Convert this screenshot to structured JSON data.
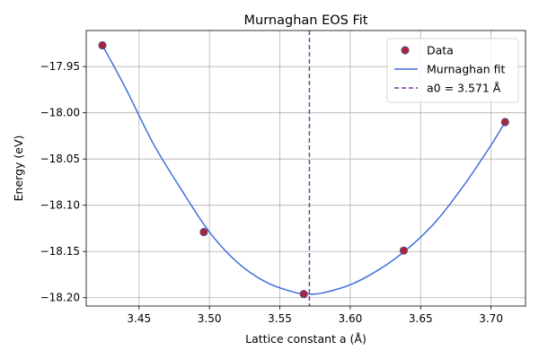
{
  "chart_data": {
    "type": "scatter",
    "title": "Murnaghan EOS Fit",
    "xlabel": "Lattice constant a (Å)",
    "ylabel": "Energy (eV)",
    "xlim": [
      3.4125,
      3.7245
    ],
    "ylim": [
      -18.209,
      -17.911
    ],
    "xticks": [
      3.45,
      3.5,
      3.55,
      3.6,
      3.65,
      3.7
    ],
    "xtick_labels": [
      "3.45",
      "3.50",
      "3.55",
      "3.60",
      "3.65",
      "3.70"
    ],
    "yticks": [
      -17.95,
      -18.0,
      -18.05,
      -18.1,
      -18.15,
      -18.2
    ],
    "ytick_labels": [
      "−17.95",
      "−18.00",
      "−18.05",
      "−18.10",
      "−18.15",
      "−18.20"
    ],
    "grid": true,
    "legend_position": "top-right",
    "series": [
      {
        "name": "Data",
        "kind": "scatter",
        "color": "#a8253a",
        "x": [
          3.424,
          3.496,
          3.567,
          3.638,
          3.71
        ],
        "y": [
          -17.927,
          -18.129,
          -18.196,
          -18.149,
          -18.01
        ]
      },
      {
        "name": "Murnaghan fit",
        "kind": "line",
        "color": "#3d6fdd",
        "x": [
          3.424,
          3.44,
          3.46,
          3.48,
          3.5,
          3.52,
          3.54,
          3.56,
          3.571,
          3.58,
          3.6,
          3.62,
          3.64,
          3.66,
          3.68,
          3.7,
          3.71
        ],
        "y": [
          -17.927,
          -17.972,
          -18.033,
          -18.083,
          -18.129,
          -18.162,
          -18.183,
          -18.194,
          -18.196,
          -18.195,
          -18.186,
          -18.17,
          -18.148,
          -18.119,
          -18.08,
          -18.035,
          -18.01
        ]
      },
      {
        "name": "a0 = 3.571 Å",
        "kind": "vline",
        "color": "#7b3ea0",
        "x": 3.571
      }
    ]
  }
}
